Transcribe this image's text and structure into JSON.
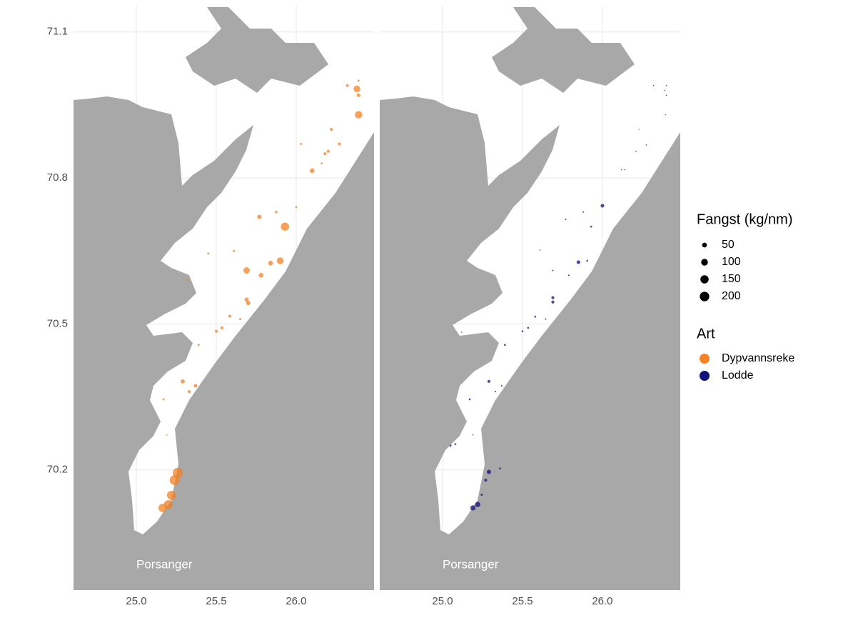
{
  "chart_data": [
    {
      "type": "scatter",
      "annotation": "Porsanger",
      "xlim": [
        24.607,
        26.487
      ],
      "ylim": [
        69.953,
        71.154
      ],
      "xticks": [
        {
          "value": 25,
          "label": "25.0"
        },
        25.5,
        {
          "value": 26,
          "label": "26.0"
        }
      ],
      "yticks": [
        70.2,
        70.5,
        70.8,
        71.1
      ],
      "grid": true,
      "series": [
        {
          "name": "Dypvannsreke",
          "color": "#f28224",
          "x": [
            26.38,
            26.39,
            26.39,
            26.32,
            26.39,
            26.22,
            26.27,
            26.2,
            26.18,
            26.03,
            26.16,
            26.1,
            26.0,
            25.875,
            25.77,
            25.93,
            25.61,
            25.45,
            25.9,
            25.84,
            25.69,
            25.78,
            25.32,
            25.69,
            25.7,
            25.65,
            25.585,
            25.535,
            25.5,
            25.39,
            25.29,
            25.37,
            25.33,
            25.17,
            25.19,
            25.26,
            25.24,
            25.22,
            25.2,
            25.165
          ],
          "y": [
            70.983,
            70.97,
            71.0,
            70.99,
            70.93,
            70.9,
            70.87,
            70.855,
            70.85,
            70.87,
            70.83,
            70.815,
            70.74,
            70.73,
            70.72,
            70.7,
            70.65,
            70.645,
            70.63,
            70.625,
            70.61,
            70.6,
            70.59,
            70.55,
            70.543,
            70.51,
            70.516,
            70.492,
            70.485,
            70.457,
            70.382,
            70.373,
            70.361,
            70.345,
            70.272,
            70.194,
            70.179,
            70.148,
            70.129,
            70.122
          ],
          "sizes": [
            100,
            30,
            10,
            20,
            120,
            20,
            20,
            20,
            20,
            10,
            10,
            50,
            10,
            15,
            40,
            150,
            10,
            10,
            100,
            50,
            90,
            50,
            10,
            40,
            40,
            10,
            20,
            20,
            20,
            10,
            40,
            30,
            20,
            10,
            5,
            230,
            220,
            180,
            170,
            160
          ]
        }
      ]
    },
    {
      "type": "scatter",
      "annotation": "Porsanger",
      "xlim": [
        24.607,
        26.487
      ],
      "ylim": [
        69.953,
        71.154
      ],
      "xticks": [
        {
          "value": 25,
          "label": "25.0"
        },
        25.5,
        {
          "value": 26,
          "label": "26.0"
        }
      ],
      "yticks": [
        70.2,
        70.5,
        70.8,
        71.1
      ],
      "grid": true,
      "series": [
        {
          "name": "Lodde",
          "color": "#10107a",
          "x": [
            26.4,
            26.32,
            26.39,
            26.4,
            26.395,
            26.23,
            26.275,
            26.21,
            26.12,
            26.14,
            26.0,
            25.88,
            25.77,
            25.93,
            25.61,
            25.85,
            25.905,
            25.69,
            25.79,
            25.69,
            25.69,
            25.58,
            25.645,
            25.535,
            25.5,
            25.39,
            25.12,
            25.29,
            25.37,
            25.33,
            25.17,
            25.19,
            25.05,
            25.08,
            25.36,
            25.29,
            25.27,
            25.245,
            25.22,
            25.19
          ],
          "y": [
            70.99,
            70.99,
            70.98,
            70.97,
            70.93,
            70.9,
            70.868,
            70.855,
            70.817,
            70.817,
            70.743,
            70.73,
            70.715,
            70.7,
            70.652,
            70.627,
            70.63,
            70.61,
            70.6,
            70.554,
            70.545,
            70.515,
            70.51,
            70.492,
            70.485,
            70.457,
            70.483,
            70.382,
            70.373,
            70.361,
            70.345,
            70.272,
            70.25,
            70.253,
            70.203,
            70.196,
            70.179,
            70.149,
            70.129,
            70.122
          ],
          "sizes": [
            3,
            3,
            3,
            3,
            2,
            2,
            3,
            3,
            3,
            3,
            30,
            5,
            5,
            8,
            3,
            30,
            8,
            5,
            5,
            20,
            20,
            8,
            5,
            8,
            8,
            8,
            3,
            20,
            5,
            5,
            8,
            3,
            8,
            8,
            8,
            40,
            20,
            10,
            60,
            60
          ]
        }
      ]
    }
  ],
  "size_legend": {
    "title": "Fangst (kg/nm)",
    "values": [
      50,
      100,
      150,
      200
    ]
  },
  "color_legend": {
    "title": "Art"
  }
}
